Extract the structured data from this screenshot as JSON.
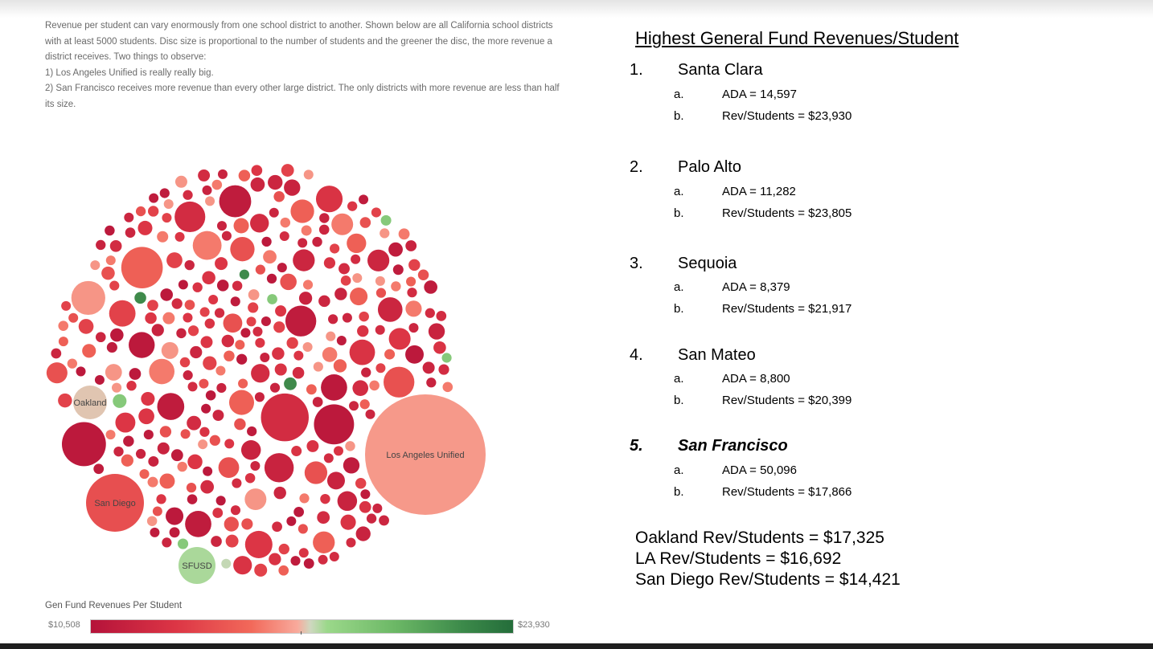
{
  "intro": {
    "lines": [
      "Revenue per student can vary enormously from one school district to another. Shown below are all California school districts with at least 5000 students. Disc size is proportional to the number of students and the greener the disc, the more revenue a district receives. Two things to observe:",
      "1) Los Angeles Unified is really really big.",
      "2) San Francisco receives more revenue than every other large district. The only districts with more revenue are less than half its size."
    ]
  },
  "chart_data": {
    "type": "bubble",
    "title": "California school districts (>= 5000 students)",
    "size_encoding": "number of students",
    "color_encoding": "Gen Fund Revenues Per Student",
    "labeled_bubbles": [
      {
        "label": "Los Angeles Unified",
        "rev_per_student": 16692
      },
      {
        "label": "San Diego",
        "rev_per_student": 14421
      },
      {
        "label": "Oakland",
        "rev_per_student": 17325
      },
      {
        "label": "SFUSD",
        "rev_per_student": 17866
      }
    ],
    "legend": {
      "title": "Gen Fund Revenues Per Student",
      "min_label": "$10,508",
      "max_label": "$23,930",
      "min": 10508,
      "max": 23930,
      "colors": [
        "#b5133a",
        "#f8aa9c",
        "#9bd88a",
        "#246d3a"
      ]
    }
  },
  "right": {
    "title": "Highest General Fund Revenues/Student",
    "items": [
      {
        "num": "1.",
        "name": "Santa Clara",
        "a": "a.",
        "ada": "ADA = 14,597",
        "b": "b.",
        "rev": "Rev/Students = $23,930"
      },
      {
        "num": "2.",
        "name": "Palo Alto",
        "a": "a.",
        "ada": "ADA = 11,282",
        "b": "b.",
        "rev": "Rev/Students = $23,805"
      },
      {
        "num": "3.",
        "name": "Sequoia",
        "a": "a.",
        "ada": "ADA = 8,379",
        "b": "b.",
        "rev": "Rev/Students = $21,917"
      },
      {
        "num": "4.",
        "name": "San Mateo",
        "a": "a.",
        "ada": "ADA = 8,800",
        "b": "b.",
        "rev": "Rev/Students = $20,399"
      },
      {
        "num": "5.",
        "name": "San Francisco",
        "a": "a.",
        "ada": "ADA = 50,096",
        "b": "b.",
        "rev": "Rev/Students = $17,866"
      }
    ],
    "summary": [
      "Oakland Rev/Students = $17,325",
      "LA Rev/Students = $16,692",
      "San Diego Rev/Students = $14,421"
    ]
  }
}
